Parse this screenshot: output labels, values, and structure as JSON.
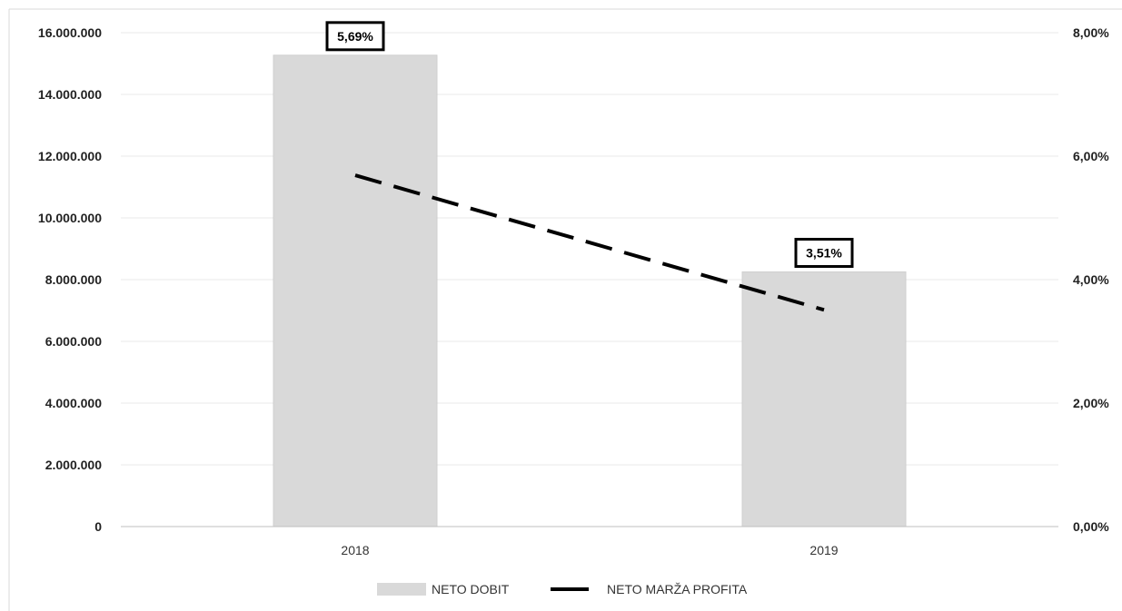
{
  "chart_data": {
    "type": "bar",
    "categories": [
      "2018",
      "2019"
    ],
    "series": [
      {
        "name": "NETO DOBIT",
        "type": "bar",
        "axis": "left",
        "values": [
          15270000,
          8250000
        ],
        "color": "#d9d9d9"
      },
      {
        "name": "NETO MARŽA PROFITA",
        "type": "line",
        "axis": "right",
        "style": "dashed",
        "values": [
          5.69,
          3.51
        ],
        "color": "#000000"
      }
    ],
    "data_labels": [
      "5,69%",
      "3,51%"
    ],
    "y_left": {
      "min": 0,
      "max": 16000000,
      "step": 2000000,
      "tick_labels": [
        "0",
        "2.000.000",
        "4.000.000",
        "6.000.000",
        "8.000.000",
        "10.000.000",
        "12.000.000",
        "14.000.000",
        "16.000.000"
      ]
    },
    "y_right": {
      "min": 0,
      "max": 8,
      "step": 2,
      "tick_labels": [
        "0,00%",
        "2,00%",
        "4,00%",
        "6,00%",
        "8,00%"
      ]
    },
    "grid": true,
    "legend": "bottom",
    "title": "",
    "xlabel": "",
    "ylabel": ""
  }
}
